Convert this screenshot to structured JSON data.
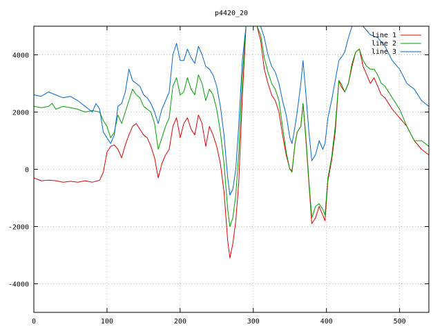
{
  "chart_data": {
    "type": "line",
    "title": "p4420_20",
    "xlabel": "",
    "ylabel": "",
    "xlim": [
      0,
      540
    ],
    "ylim": [
      -5000,
      5000
    ],
    "grid": true,
    "legend_position": "top-right",
    "xticks": [
      0,
      100,
      200,
      300,
      400,
      500
    ],
    "yticks": [
      -4000,
      -2000,
      0,
      2000,
      4000
    ],
    "series": [
      {
        "name": "line 1",
        "color": "#e00000",
        "points": [
          [
            0,
            -300
          ],
          [
            10,
            -400
          ],
          [
            20,
            -380
          ],
          [
            30,
            -400
          ],
          [
            40,
            -450
          ],
          [
            50,
            -420
          ],
          [
            60,
            -450
          ],
          [
            70,
            -400
          ],
          [
            80,
            -450
          ],
          [
            85,
            -420
          ],
          [
            90,
            -380
          ],
          [
            95,
            -100
          ],
          [
            100,
            600
          ],
          [
            105,
            800
          ],
          [
            110,
            850
          ],
          [
            115,
            700
          ],
          [
            120,
            400
          ],
          [
            125,
            850
          ],
          [
            130,
            1200
          ],
          [
            135,
            1500
          ],
          [
            140,
            1600
          ],
          [
            145,
            1400
          ],
          [
            150,
            1200
          ],
          [
            155,
            1100
          ],
          [
            160,
            800
          ],
          [
            165,
            400
          ],
          [
            170,
            -300
          ],
          [
            175,
            200
          ],
          [
            180,
            500
          ],
          [
            185,
            700
          ],
          [
            190,
            1500
          ],
          [
            195,
            1800
          ],
          [
            200,
            1100
          ],
          [
            205,
            1600
          ],
          [
            210,
            1800
          ],
          [
            215,
            1400
          ],
          [
            220,
            1200
          ],
          [
            225,
            1900
          ],
          [
            230,
            1600
          ],
          [
            235,
            800
          ],
          [
            240,
            1500
          ],
          [
            245,
            1200
          ],
          [
            250,
            800
          ],
          [
            255,
            200
          ],
          [
            260,
            -800
          ],
          [
            265,
            -2500
          ],
          [
            268,
            -3100
          ],
          [
            272,
            -2600
          ],
          [
            276,
            -1800
          ],
          [
            280,
            -500
          ],
          [
            285,
            2500
          ],
          [
            290,
            5000
          ],
          [
            295,
            5000
          ],
          [
            300,
            5000
          ],
          [
            305,
            5000
          ],
          [
            310,
            4500
          ],
          [
            315,
            3500
          ],
          [
            320,
            3000
          ],
          [
            325,
            2600
          ],
          [
            330,
            2400
          ],
          [
            335,
            2000
          ],
          [
            340,
            1200
          ],
          [
            345,
            500
          ],
          [
            350,
            0
          ],
          [
            353,
            -50
          ],
          [
            357,
            900
          ],
          [
            360,
            1300
          ],
          [
            365,
            1500
          ],
          [
            368,
            2300
          ],
          [
            372,
            1000
          ],
          [
            376,
            -500
          ],
          [
            380,
            -1900
          ],
          [
            385,
            -1700
          ],
          [
            390,
            -1300
          ],
          [
            395,
            -1600
          ],
          [
            398,
            -1800
          ],
          [
            402,
            -400
          ],
          [
            407,
            300
          ],
          [
            412,
            1300
          ],
          [
            417,
            3100
          ],
          [
            420,
            2900
          ],
          [
            425,
            2700
          ],
          [
            430,
            3000
          ],
          [
            435,
            3600
          ],
          [
            440,
            4100
          ],
          [
            445,
            4200
          ],
          [
            450,
            3600
          ],
          [
            455,
            3300
          ],
          [
            460,
            3000
          ],
          [
            465,
            3200
          ],
          [
            470,
            2900
          ],
          [
            475,
            2600
          ],
          [
            480,
            2500
          ],
          [
            490,
            2100
          ],
          [
            500,
            1800
          ],
          [
            510,
            1500
          ],
          [
            520,
            1000
          ],
          [
            530,
            700
          ],
          [
            540,
            500
          ]
        ]
      },
      {
        "name": "line 2",
        "color": "#00a000",
        "points": [
          [
            0,
            2200
          ],
          [
            10,
            2150
          ],
          [
            20,
            2200
          ],
          [
            25,
            2300
          ],
          [
            30,
            2100
          ],
          [
            40,
            2200
          ],
          [
            50,
            2150
          ],
          [
            60,
            2100
          ],
          [
            70,
            2000
          ],
          [
            80,
            2050
          ],
          [
            90,
            2000
          ],
          [
            95,
            1700
          ],
          [
            100,
            1500
          ],
          [
            105,
            1100
          ],
          [
            110,
            1300
          ],
          [
            115,
            1900
          ],
          [
            120,
            1600
          ],
          [
            125,
            2000
          ],
          [
            130,
            2400
          ],
          [
            135,
            2800
          ],
          [
            140,
            2600
          ],
          [
            145,
            2500
          ],
          [
            150,
            2200
          ],
          [
            155,
            2100
          ],
          [
            160,
            2000
          ],
          [
            165,
            1600
          ],
          [
            170,
            700
          ],
          [
            175,
            1100
          ],
          [
            180,
            1500
          ],
          [
            185,
            1800
          ],
          [
            190,
            2900
          ],
          [
            195,
            3200
          ],
          [
            200,
            2600
          ],
          [
            205,
            2700
          ],
          [
            210,
            3200
          ],
          [
            215,
            2800
          ],
          [
            220,
            2600
          ],
          [
            225,
            3300
          ],
          [
            230,
            3000
          ],
          [
            235,
            2400
          ],
          [
            240,
            2800
          ],
          [
            245,
            2600
          ],
          [
            250,
            2100
          ],
          [
            255,
            1300
          ],
          [
            260,
            200
          ],
          [
            265,
            -1400
          ],
          [
            268,
            -2000
          ],
          [
            272,
            -1700
          ],
          [
            276,
            -900
          ],
          [
            280,
            500
          ],
          [
            285,
            3200
          ],
          [
            290,
            5000
          ],
          [
            295,
            5000
          ],
          [
            300,
            5000
          ],
          [
            305,
            5000
          ],
          [
            310,
            4700
          ],
          [
            315,
            3900
          ],
          [
            320,
            3400
          ],
          [
            325,
            3000
          ],
          [
            330,
            2800
          ],
          [
            335,
            2400
          ],
          [
            340,
            1500
          ],
          [
            345,
            600
          ],
          [
            350,
            0
          ],
          [
            353,
            -100
          ],
          [
            357,
            900
          ],
          [
            360,
            1300
          ],
          [
            365,
            1500
          ],
          [
            368,
            2300
          ],
          [
            372,
            1100
          ],
          [
            376,
            -400
          ],
          [
            380,
            -1700
          ],
          [
            385,
            -1300
          ],
          [
            390,
            -1200
          ],
          [
            395,
            -1400
          ],
          [
            398,
            -1600
          ],
          [
            402,
            -300
          ],
          [
            407,
            400
          ],
          [
            412,
            1500
          ],
          [
            417,
            3100
          ],
          [
            420,
            3000
          ],
          [
            425,
            2700
          ],
          [
            430,
            3000
          ],
          [
            435,
            3700
          ],
          [
            440,
            4100
          ],
          [
            445,
            4200
          ],
          [
            450,
            3800
          ],
          [
            455,
            3600
          ],
          [
            460,
            3500
          ],
          [
            465,
            3500
          ],
          [
            470,
            3300
          ],
          [
            475,
            3000
          ],
          [
            480,
            2900
          ],
          [
            490,
            2500
          ],
          [
            500,
            2100
          ],
          [
            510,
            1500
          ],
          [
            520,
            1000
          ],
          [
            530,
            1000
          ],
          [
            540,
            800
          ]
        ]
      },
      {
        "name": "line 3",
        "color": "#0066cc",
        "points": [
          [
            0,
            2600
          ],
          [
            10,
            2550
          ],
          [
            20,
            2700
          ],
          [
            30,
            2600
          ],
          [
            40,
            2500
          ],
          [
            50,
            2550
          ],
          [
            60,
            2400
          ],
          [
            70,
            2200
          ],
          [
            80,
            2000
          ],
          [
            85,
            2300
          ],
          [
            90,
            2100
          ],
          [
            95,
            1300
          ],
          [
            100,
            1100
          ],
          [
            105,
            900
          ],
          [
            110,
            1200
          ],
          [
            115,
            2200
          ],
          [
            120,
            2300
          ],
          [
            125,
            2700
          ],
          [
            130,
            3500
          ],
          [
            135,
            3100
          ],
          [
            140,
            3000
          ],
          [
            145,
            2900
          ],
          [
            150,
            2600
          ],
          [
            155,
            2500
          ],
          [
            160,
            2300
          ],
          [
            165,
            2000
          ],
          [
            170,
            1600
          ],
          [
            175,
            2100
          ],
          [
            180,
            2400
          ],
          [
            185,
            2700
          ],
          [
            190,
            4000
          ],
          [
            195,
            4400
          ],
          [
            200,
            3800
          ],
          [
            205,
            3800
          ],
          [
            210,
            4200
          ],
          [
            215,
            3900
          ],
          [
            220,
            3700
          ],
          [
            225,
            4300
          ],
          [
            230,
            4000
          ],
          [
            235,
            3600
          ],
          [
            240,
            3500
          ],
          [
            245,
            3300
          ],
          [
            250,
            2900
          ],
          [
            255,
            2200
          ],
          [
            260,
            1200
          ],
          [
            265,
            -300
          ],
          [
            268,
            -900
          ],
          [
            272,
            -700
          ],
          [
            276,
            0
          ],
          [
            280,
            1500
          ],
          [
            285,
            3800
          ],
          [
            290,
            5000
          ],
          [
            295,
            5000
          ],
          [
            300,
            5000
          ],
          [
            305,
            5000
          ],
          [
            310,
            5000
          ],
          [
            315,
            4600
          ],
          [
            320,
            4000
          ],
          [
            325,
            3600
          ],
          [
            330,
            3400
          ],
          [
            335,
            3000
          ],
          [
            340,
            2400
          ],
          [
            345,
            1900
          ],
          [
            350,
            1100
          ],
          [
            353,
            900
          ],
          [
            357,
            1500
          ],
          [
            360,
            2000
          ],
          [
            365,
            3000
          ],
          [
            368,
            3800
          ],
          [
            372,
            2600
          ],
          [
            376,
            1300
          ],
          [
            380,
            300
          ],
          [
            385,
            500
          ],
          [
            390,
            1000
          ],
          [
            395,
            700
          ],
          [
            398,
            900
          ],
          [
            402,
            1800
          ],
          [
            407,
            2400
          ],
          [
            412,
            3100
          ],
          [
            417,
            3800
          ],
          [
            420,
            3900
          ],
          [
            425,
            4100
          ],
          [
            430,
            4600
          ],
          [
            435,
            5000
          ],
          [
            440,
            5000
          ],
          [
            450,
            5000
          ],
          [
            460,
            4700
          ],
          [
            470,
            4600
          ],
          [
            480,
            4300
          ],
          [
            490,
            3800
          ],
          [
            500,
            3500
          ],
          [
            510,
            3000
          ],
          [
            520,
            2800
          ],
          [
            530,
            2400
          ],
          [
            540,
            2200
          ]
        ]
      }
    ]
  }
}
